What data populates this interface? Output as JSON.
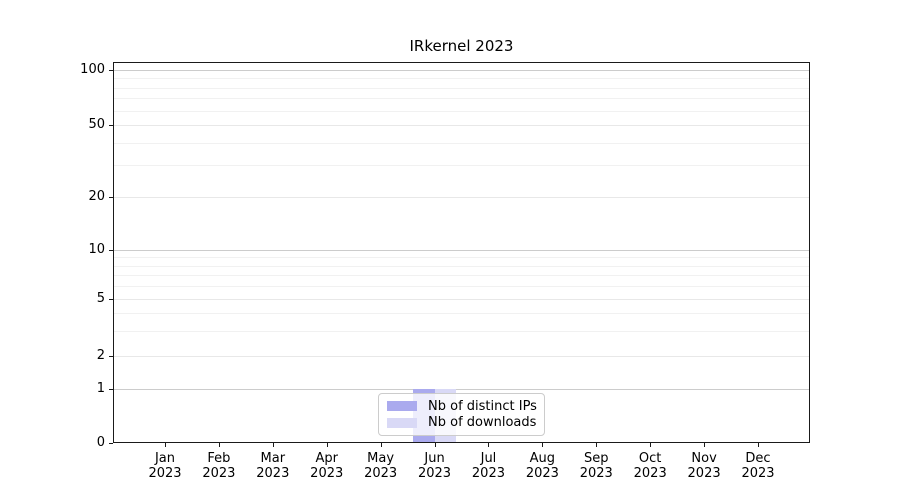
{
  "chart_data": {
    "type": "bar",
    "title": "IRkernel 2023",
    "year": "2023",
    "months": [
      "Jan",
      "Feb",
      "Mar",
      "Apr",
      "May",
      "Jun",
      "Jul",
      "Aug",
      "Sep",
      "Oct",
      "Nov",
      "Dec"
    ],
    "categories": [
      "Jan 2023",
      "Feb 2023",
      "Mar 2023",
      "Apr 2023",
      "May 2023",
      "Jun 2023",
      "Jul 2023",
      "Aug 2023",
      "Sep 2023",
      "Oct 2023",
      "Nov 2023",
      "Dec 2023"
    ],
    "series": [
      {
        "name": "Nb of distinct IPs",
        "color": "#aaaaee",
        "values": [
          0,
          0,
          0,
          0,
          0,
          1,
          0,
          0,
          0,
          0,
          0,
          0
        ]
      },
      {
        "name": "Nb of downloads",
        "color": "#d9d9f6",
        "values": [
          0,
          0,
          0,
          0,
          0,
          1,
          0,
          0,
          0,
          0,
          0,
          0
        ]
      }
    ],
    "y_axis": {
      "ticks": [
        0,
        1,
        2,
        5,
        10,
        20,
        50,
        100
      ],
      "minor_ticks": [
        3,
        4,
        6,
        7,
        8,
        9,
        30,
        40,
        60,
        70,
        80,
        90
      ],
      "scale": "symlog",
      "range": [
        0,
        100
      ]
    },
    "x_axis": {
      "label_line2": "2023"
    },
    "legend": {
      "position": "lower center",
      "items": [
        "Nb of distinct IPs",
        "Nb of downloads"
      ]
    },
    "grid": true,
    "colors": {
      "decade_grid": "#cccccc",
      "labeled_grid": "#e8e8e8",
      "minor_grid": "#f1f1f1",
      "spine": "#1a1a1a"
    }
  }
}
